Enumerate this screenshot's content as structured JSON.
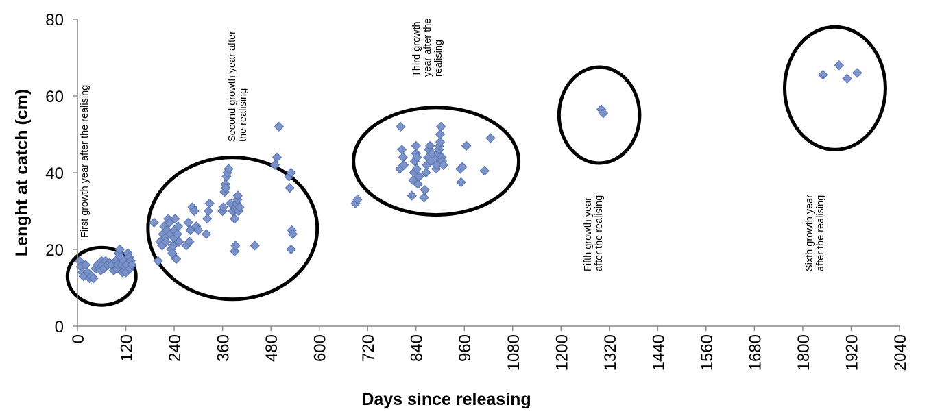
{
  "chart_data": {
    "type": "scatter",
    "title": "",
    "xlabel": "Days since releasing",
    "ylabel": "Lenght at catch (cm)",
    "xlim": [
      0,
      2040
    ],
    "ylim": [
      0,
      80
    ],
    "x_ticks": [
      "0",
      "120",
      "240",
      "360",
      "480",
      "600",
      "720",
      "840",
      "960",
      "1080",
      "1200",
      "1320",
      "1440",
      "1560",
      "1680",
      "1800",
      "1920",
      "2040"
    ],
    "y_ticks": [
      "0",
      "20",
      "40",
      "60",
      "80"
    ],
    "grid": false,
    "legend": "none",
    "marker_color": "#7b93c9",
    "marker_edge_color": "#5672b0",
    "annotations": [
      {
        "id": "g1",
        "lines": [
          "First growth  year after the realising"
        ]
      },
      {
        "id": "g2",
        "lines": [
          "Second growth  year after",
          "the realising"
        ]
      },
      {
        "id": "g3",
        "lines": [
          "Third growth",
          "year after the",
          "realising"
        ]
      },
      {
        "id": "g5",
        "lines": [
          "Fifth growth  year",
          "after the realising"
        ]
      },
      {
        "id": "g6",
        "lines": [
          "Sixth growth  year",
          "after the realising"
        ]
      }
    ],
    "groups": [
      {
        "id": "g1",
        "cx": 60,
        "cy": 13,
        "rx": 85,
        "ry": 7.5
      },
      {
        "id": "g2",
        "cx": 385,
        "cy": 25.5,
        "rx": 210,
        "ry": 18.5
      },
      {
        "id": "g3",
        "cx": 890,
        "cy": 43,
        "rx": 205,
        "ry": 14
      },
      {
        "id": "g5",
        "cx": 1295,
        "cy": 55,
        "rx": 100,
        "ry": 12.5
      },
      {
        "id": "g6",
        "cx": 1880,
        "cy": 62,
        "rx": 125,
        "ry": 16
      }
    ],
    "series": [
      {
        "points": [
          [
            5,
            17
          ],
          [
            8,
            15.5
          ],
          [
            12,
            14
          ],
          [
            15,
            13
          ],
          [
            20,
            16
          ],
          [
            25,
            14
          ],
          [
            30,
            12.5
          ],
          [
            35,
            13
          ],
          [
            40,
            12.5
          ],
          [
            45,
            15
          ],
          [
            50,
            16
          ],
          [
            55,
            15
          ],
          [
            58,
            14.5
          ],
          [
            60,
            17
          ],
          [
            62,
            16
          ],
          [
            65,
            15
          ],
          [
            70,
            17
          ],
          [
            75,
            16
          ],
          [
            80,
            16.5
          ],
          [
            85,
            16
          ],
          [
            90,
            14.5
          ],
          [
            95,
            17
          ],
          [
            98,
            15
          ],
          [
            100,
            16
          ],
          [
            102,
            19
          ],
          [
            105,
            20
          ],
          [
            108,
            18
          ],
          [
            110,
            16
          ],
          [
            112,
            14
          ],
          [
            115,
            17
          ],
          [
            118,
            15.5
          ],
          [
            120,
            14
          ],
          [
            122,
            16
          ],
          [
            125,
            19
          ],
          [
            128,
            18
          ],
          [
            130,
            15
          ],
          [
            132,
            17
          ],
          [
            135,
            16
          ],
          [
            190,
            27
          ],
          [
            200,
            17
          ],
          [
            205,
            22
          ],
          [
            210,
            21
          ],
          [
            212,
            24
          ],
          [
            215,
            26
          ],
          [
            218,
            23
          ],
          [
            220,
            22
          ],
          [
            222,
            25
          ],
          [
            225,
            28
          ],
          [
            228,
            27
          ],
          [
            230,
            24
          ],
          [
            232,
            20
          ],
          [
            235,
            19
          ],
          [
            237,
            21
          ],
          [
            240,
            23
          ],
          [
            240,
            25
          ],
          [
            242,
            28
          ],
          [
            245,
            17.5
          ],
          [
            248,
            24
          ],
          [
            250,
            26
          ],
          [
            252,
            22
          ],
          [
            270,
            21
          ],
          [
            275,
            27
          ],
          [
            278,
            22
          ],
          [
            280,
            25
          ],
          [
            285,
            31
          ],
          [
            290,
            30
          ],
          [
            295,
            26
          ],
          [
            300,
            25
          ],
          [
            320,
            24
          ],
          [
            322,
            28
          ],
          [
            325,
            30
          ],
          [
            328,
            32
          ],
          [
            360,
            30
          ],
          [
            362,
            31
          ],
          [
            365,
            35
          ],
          [
            367,
            37
          ],
          [
            368,
            36
          ],
          [
            370,
            39
          ],
          [
            372,
            40
          ],
          [
            375,
            41
          ],
          [
            380,
            32
          ],
          [
            385,
            30
          ],
          [
            390,
            28
          ],
          [
            392,
            30.5
          ],
          [
            394,
            31
          ],
          [
            395,
            32
          ],
          [
            397,
            33
          ],
          [
            398,
            34
          ],
          [
            400,
            30
          ],
          [
            402,
            31
          ],
          [
            390,
            19.5
          ],
          [
            392,
            21
          ],
          [
            440,
            21
          ],
          [
            490,
            42
          ],
          [
            495,
            44
          ],
          [
            500,
            52
          ],
          [
            525,
            39
          ],
          [
            527,
            36
          ],
          [
            530,
            40
          ],
          [
            532,
            25
          ],
          [
            534,
            24
          ],
          [
            530,
            20
          ],
          [
            690,
            32
          ],
          [
            695,
            33
          ],
          [
            800,
            41
          ],
          [
            802,
            52
          ],
          [
            805,
            46
          ],
          [
            808,
            44
          ],
          [
            810,
            42
          ],
          [
            830,
            34
          ],
          [
            833,
            38
          ],
          [
            835,
            40
          ],
          [
            837,
            43
          ],
          [
            840,
            45
          ],
          [
            840,
            47
          ],
          [
            842,
            41
          ],
          [
            843,
            44
          ],
          [
            845,
            37
          ],
          [
            848,
            39
          ],
          [
            860,
            33.5
          ],
          [
            862,
            35.5
          ],
          [
            865,
            40
          ],
          [
            867,
            42
          ],
          [
            870,
            44
          ],
          [
            872,
            46
          ],
          [
            875,
            47
          ],
          [
            877,
            43
          ],
          [
            880,
            45
          ],
          [
            890,
            41
          ],
          [
            892,
            42
          ],
          [
            893,
            44
          ],
          [
            895,
            45
          ],
          [
            897,
            46
          ],
          [
            898,
            47
          ],
          [
            900,
            48
          ],
          [
            900,
            50
          ],
          [
            902,
            52
          ],
          [
            904,
            44
          ],
          [
            905,
            43
          ],
          [
            908,
            42
          ],
          [
            950,
            41
          ],
          [
            952,
            37.5
          ],
          [
            955,
            41.5
          ],
          [
            965,
            47
          ],
          [
            1010,
            40.5
          ],
          [
            1025,
            49
          ],
          [
            1300,
            56.5
          ],
          [
            1305,
            55.5
          ],
          [
            1850,
            65.5
          ],
          [
            1890,
            68
          ],
          [
            1910,
            64.5
          ],
          [
            1935,
            66
          ]
        ]
      }
    ]
  }
}
